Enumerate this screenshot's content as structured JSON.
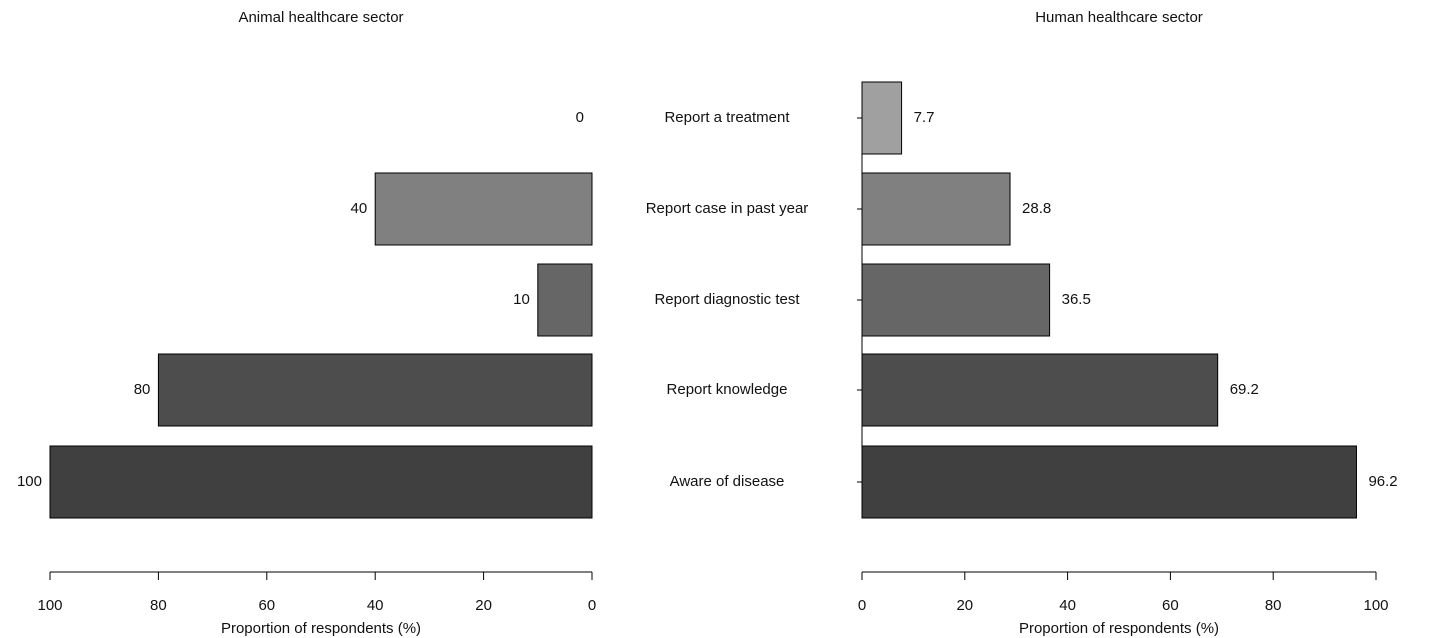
{
  "chart_data": [
    {
      "type": "bar",
      "title": "Animal healthcare sector",
      "xlabel": "Proportion of respondents (%)",
      "categories": [
        "Report a treatment",
        "Report case in past year",
        "Report diagnostic test",
        "Report knowledge",
        "Aware of disease"
      ],
      "values": [
        0,
        40,
        10,
        80,
        100
      ],
      "colors": [
        "#a0a0a0",
        "#808080",
        "#666666",
        "#4d4d4d",
        "#404040"
      ],
      "xlim": [
        100,
        0
      ],
      "xticks": [
        100,
        80,
        60,
        40,
        20,
        0
      ],
      "y_axis_line": false
    },
    {
      "type": "bar",
      "title": "Human healthcare sector",
      "xlabel": "Proportion of respondents (%)",
      "values": [
        7.7,
        28.8,
        36.5,
        69.2,
        96.2
      ],
      "colors": [
        "#a0a0a0",
        "#808080",
        "#666666",
        "#4d4d4d",
        "#404040"
      ],
      "xlim": [
        0,
        100
      ],
      "xticks": [
        0,
        20,
        40,
        60,
        80,
        100
      ],
      "y_axis_line": true
    }
  ]
}
